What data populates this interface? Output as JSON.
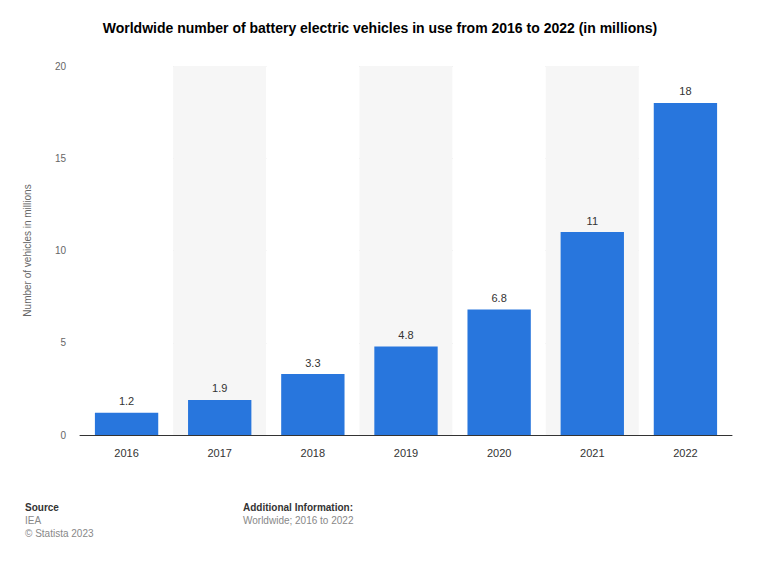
{
  "chart_data": {
    "type": "bar",
    "title": "Worldwide number of battery electric vehicles in use from 2016 to 2022 (in millions)",
    "ylabel": "Number of vehicles in millions",
    "categories": [
      "2016",
      "2017",
      "2018",
      "2019",
      "2020",
      "2021",
      "2022"
    ],
    "values": [
      1.2,
      1.9,
      3.3,
      4.8,
      6.8,
      11,
      18
    ],
    "color": "#2876dd",
    "ylim": [
      0,
      20
    ],
    "yticks": [
      0,
      5,
      10,
      15,
      20
    ],
    "grid": true,
    "data_labels": true,
    "annotations": [
      "Source",
      "IEA",
      "© Statista 2023",
      "Additional Information:",
      "Worldwide; 2016 to 2022"
    ]
  }
}
